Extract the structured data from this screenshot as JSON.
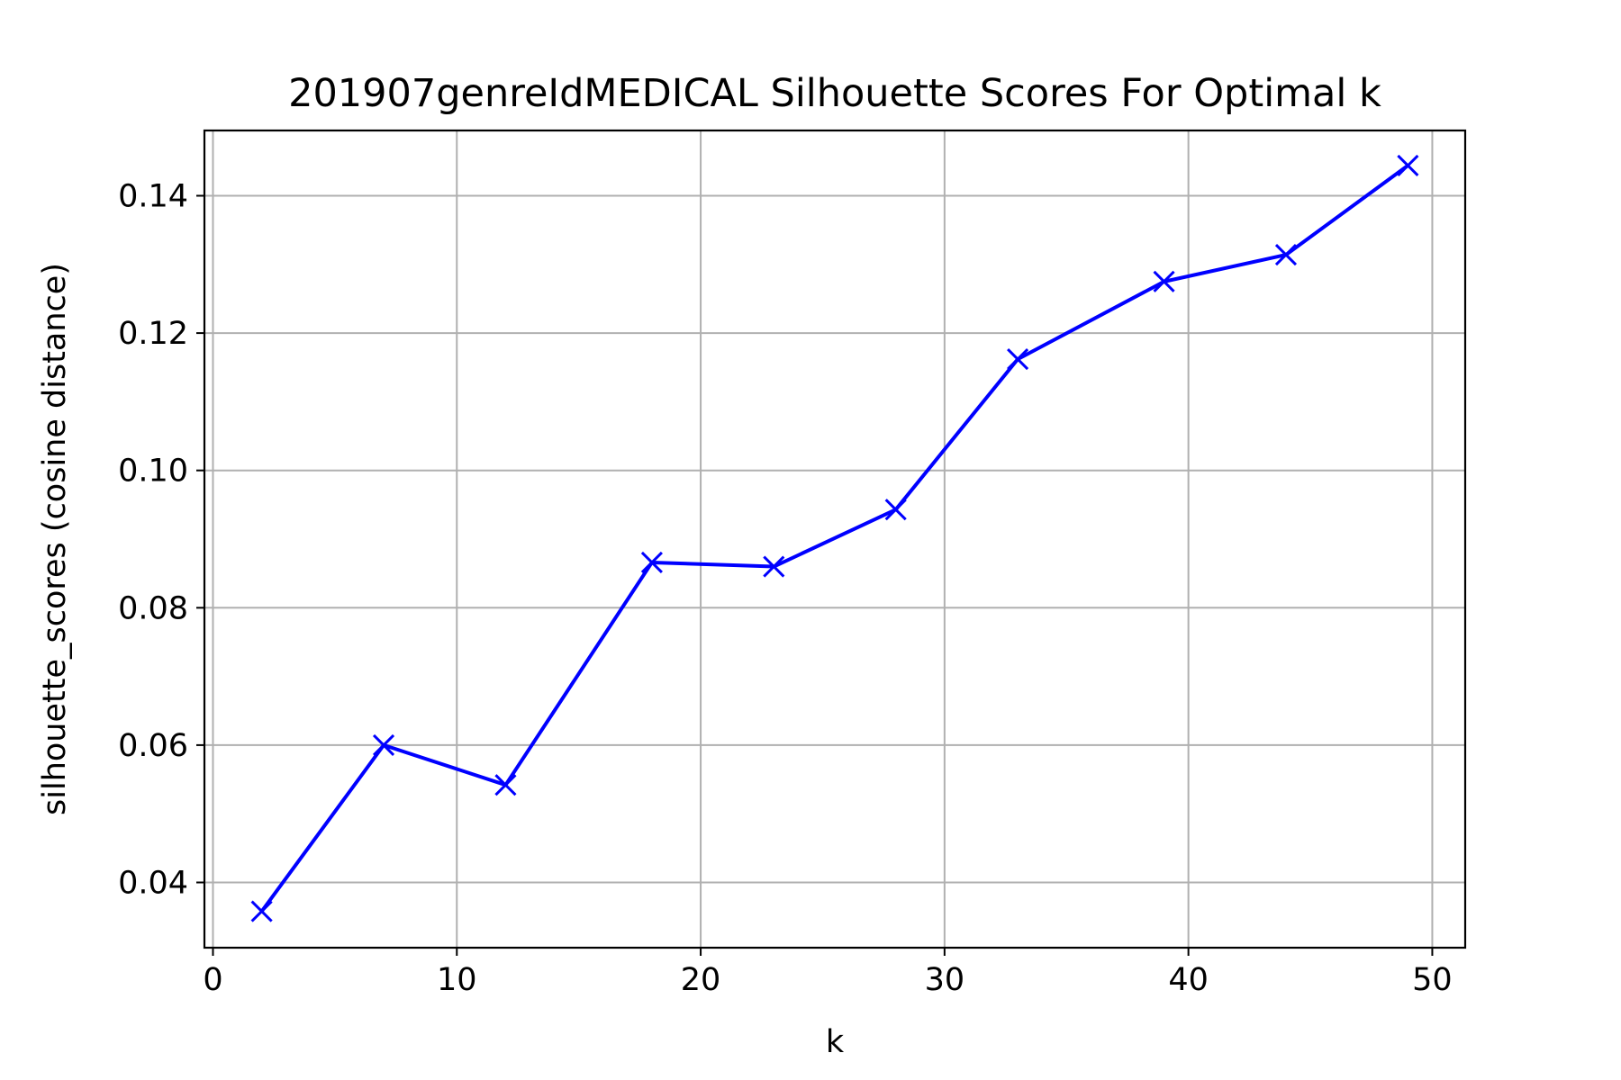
{
  "chart_data": {
    "type": "line",
    "title": "201907genreIdMEDICAL Silhouette Scores For Optimal k",
    "xlabel": "k",
    "ylabel": "silhouette_scores (cosine distance)",
    "xlim": [
      -0.35,
      51.35
    ],
    "ylim": [
      0.0305,
      0.1495
    ],
    "xticks": [
      0,
      10,
      20,
      30,
      40,
      50
    ],
    "xtick_labels": [
      "0",
      "10",
      "20",
      "30",
      "40",
      "50"
    ],
    "yticks": [
      0.04,
      0.06,
      0.08,
      0.1,
      0.12,
      0.14
    ],
    "ytick_labels": [
      "0.04",
      "0.06",
      "0.08",
      "0.10",
      "0.12",
      "0.14"
    ],
    "grid": true,
    "series": [
      {
        "color": "#0000ff",
        "marker": "x",
        "x": [
          2,
          7,
          12,
          18,
          23,
          28,
          33,
          39,
          44,
          49
        ],
        "y": [
          0.0358,
          0.06,
          0.0542,
          0.0866,
          0.086,
          0.0943,
          0.1162,
          0.1275,
          0.1314,
          0.1444
        ]
      }
    ]
  }
}
